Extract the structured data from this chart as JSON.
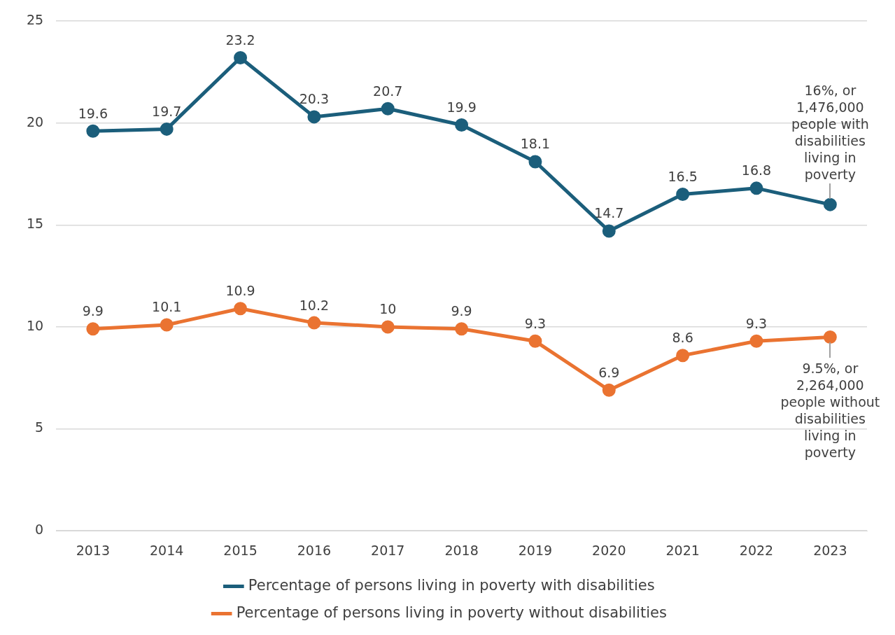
{
  "chart_data": {
    "type": "line",
    "categories": [
      "2013",
      "2014",
      "2015",
      "2016",
      "2017",
      "2018",
      "2019",
      "2020",
      "2021",
      "2022",
      "2023"
    ],
    "series": [
      {
        "name": "Percentage of persons living in poverty with disabilities",
        "color": "#1b5e7b",
        "values": [
          19.6,
          19.7,
          23.2,
          20.3,
          20.7,
          19.9,
          18.1,
          14.7,
          16.5,
          16.8,
          16
        ],
        "value_labels": [
          "19.6",
          "19.7",
          "23.2",
          "20.3",
          "20.7",
          "19.9",
          "18.1",
          "14.7",
          "16.5",
          "16.8",
          null
        ]
      },
      {
        "name": "Percentage of persons living in poverty without disabilities",
        "color": "#ea7331",
        "values": [
          9.9,
          10.1,
          10.9,
          10.2,
          10,
          9.9,
          9.3,
          6.9,
          8.6,
          9.3,
          9.5
        ],
        "value_labels": [
          "9.9",
          "10.1",
          "10.9",
          "10.2",
          "10",
          "9.9",
          "9.3",
          "6.9",
          "8.6",
          "9.3",
          null
        ]
      }
    ],
    "ylim": [
      0,
      25
    ],
    "yticks": [
      0,
      5,
      10,
      15,
      20,
      25
    ],
    "grid": "y",
    "legend": "bottom",
    "marker": "circle",
    "line_style": "solid",
    "annotations": [
      {
        "text": "16%, or 1,476,000 people with disabilities living in poverty",
        "x": "2023",
        "y": 16
      },
      {
        "text": "9.5%, or 2,264,000 people without disabilities living in poverty",
        "x": "2023",
        "y": 9.5
      }
    ]
  }
}
